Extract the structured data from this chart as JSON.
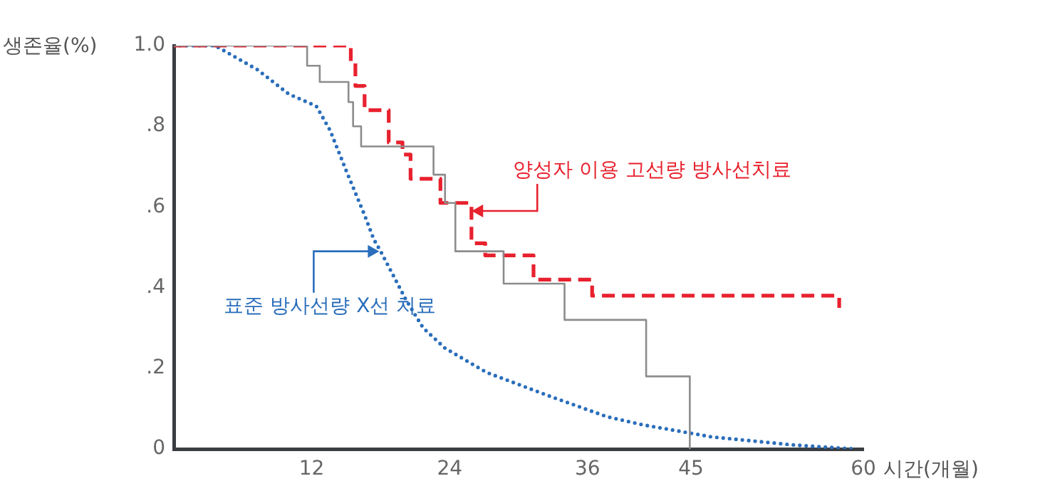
{
  "chart_data": {
    "type": "step",
    "ylabel": "생존율(%)",
    "xlabel": "시간(개월)",
    "xlim": [
      0,
      60
    ],
    "ylim": [
      0,
      1
    ],
    "xticks": [
      12,
      24,
      36,
      45,
      60
    ],
    "yticks": [
      0,
      {
        "value": 0.2,
        "label": ".2"
      },
      {
        "value": 0.4,
        "label": ".4"
      },
      {
        "value": 0.6,
        "label": ".6"
      },
      {
        "value": 0.8,
        "label": ".8"
      },
      {
        "value": 1,
        "label": "1.0"
      }
    ],
    "grid": false,
    "legend": false,
    "marker": "none",
    "series": [
      {
        "color": "#8c8c8c",
        "line_style": "solid",
        "x": [
          0,
          11.6,
          12.7,
          15.2,
          15.6,
          16.3,
          22.6,
          23.6,
          24.5,
          28.7,
          34.0,
          41.1,
          44.9
        ],
        "values": [
          1,
          0.95,
          0.91,
          0.86,
          0.8,
          0.75,
          0.68,
          0.61,
          0.49,
          0.41,
          0.32,
          0.18,
          0
        ]
      },
      {
        "color": "#e8212e",
        "line_style": "dashed",
        "x": [
          0,
          15.4,
          15.8,
          16.6,
          18.7,
          19.9,
          20.6,
          23.2,
          25.9,
          27.1,
          31.3,
          36.4,
          57.9
        ],
        "values": [
          1,
          0.96,
          0.9,
          0.84,
          0.76,
          0.73,
          0.67,
          0.61,
          0.51,
          0.48,
          0.42,
          0.38,
          0.35
        ]
      },
      {
        "type": "line",
        "color": "#2a6ebb",
        "line_style": "dotted",
        "x": [
          0,
          3.6,
          7.3,
          10,
          12.4,
          13.6,
          15,
          16.6,
          17.4,
          18,
          20.2,
          21.7,
          23.6,
          27.2,
          32.8,
          37.7,
          40.8,
          46.8,
          53.9,
          59.2
        ],
        "values": [
          1,
          1,
          0.94,
          0.88,
          0.85,
          0.79,
          0.69,
          0.58,
          0.52,
          0.49,
          0.37,
          0.3,
          0.25,
          0.19,
          0.13,
          0.08,
          0.06,
          0.03,
          0.01,
          0
        ]
      }
    ],
    "annotations": [
      {
        "text": "양성자 이용 고선량 방사선치료",
        "x": 25.8,
        "y": 0.59
      },
      {
        "text": "표준 방사선량 X선 치료",
        "x": 18,
        "y": 0.49
      }
    ]
  }
}
